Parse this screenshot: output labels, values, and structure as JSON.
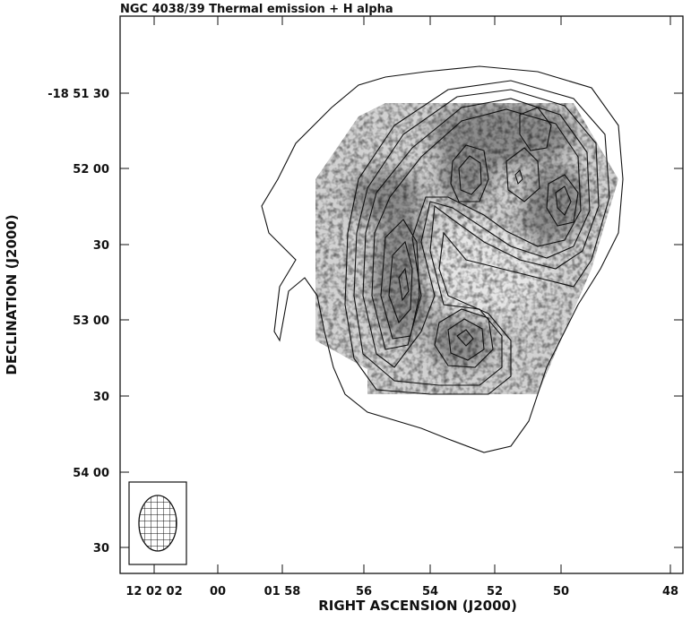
{
  "figure": {
    "title": "NGC 4038/39   Thermal emission + H alpha",
    "x_axis": {
      "label": "RIGHT ASCENSION (J2000)",
      "ticks": [
        "12 02 02",
        "00",
        "01 58",
        "56",
        "54",
        "52",
        "50",
        "48"
      ]
    },
    "y_axis": {
      "label": "DECLINATION (J2000)",
      "ticks": [
        "-18 51 30",
        "52 00",
        "30",
        "53 00",
        "30",
        "54 00",
        "30"
      ]
    }
  }
}
